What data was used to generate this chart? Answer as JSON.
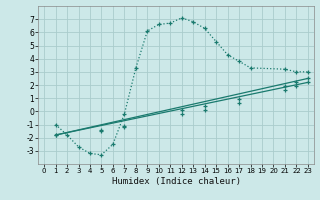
{
  "xlabel": "Humidex (Indice chaleur)",
  "bg_color": "#cce8e8",
  "line_color": "#1a7a6e",
  "grid_color": "#aacccc",
  "xlim": [
    -0.5,
    23.5
  ],
  "ylim": [
    -4,
    8
  ],
  "xticks": [
    0,
    1,
    2,
    3,
    4,
    5,
    6,
    7,
    8,
    9,
    10,
    11,
    12,
    13,
    14,
    15,
    16,
    17,
    18,
    19,
    20,
    21,
    22,
    23
  ],
  "yticks": [
    -3,
    -2,
    -1,
    0,
    1,
    2,
    3,
    4,
    5,
    6,
    7
  ],
  "series1_x": [
    1,
    2,
    3,
    4,
    5,
    6,
    7,
    8,
    9,
    10,
    11,
    12,
    13,
    14,
    15,
    16,
    17,
    18,
    21,
    22,
    23
  ],
  "series1_y": [
    -1,
    -1.8,
    -2.7,
    -3.2,
    -3.3,
    -2.5,
    -0.2,
    3.3,
    6.1,
    6.6,
    6.7,
    7.1,
    6.8,
    6.3,
    5.3,
    4.3,
    3.8,
    3.3,
    3.2,
    3.0,
    3.0
  ],
  "series2_x": [
    1,
    23
  ],
  "series2_y": [
    -1.8,
    2.5
  ],
  "series3_x": [
    1,
    23
  ],
  "series3_y": [
    -1.8,
    2.2
  ],
  "series2_markers_x": [
    1,
    5,
    7,
    12,
    14,
    17,
    21,
    22,
    23
  ],
  "series2_markers_y": [
    -1.8,
    -1.4,
    -1.1,
    0.1,
    0.4,
    0.9,
    1.9,
    2.2,
    2.5
  ],
  "series3_markers_x": [
    1,
    5,
    7,
    12,
    14,
    17,
    21,
    22,
    23
  ],
  "series3_markers_y": [
    -1.8,
    -1.5,
    -1.2,
    -0.2,
    0.1,
    0.6,
    1.6,
    1.9,
    2.2
  ]
}
